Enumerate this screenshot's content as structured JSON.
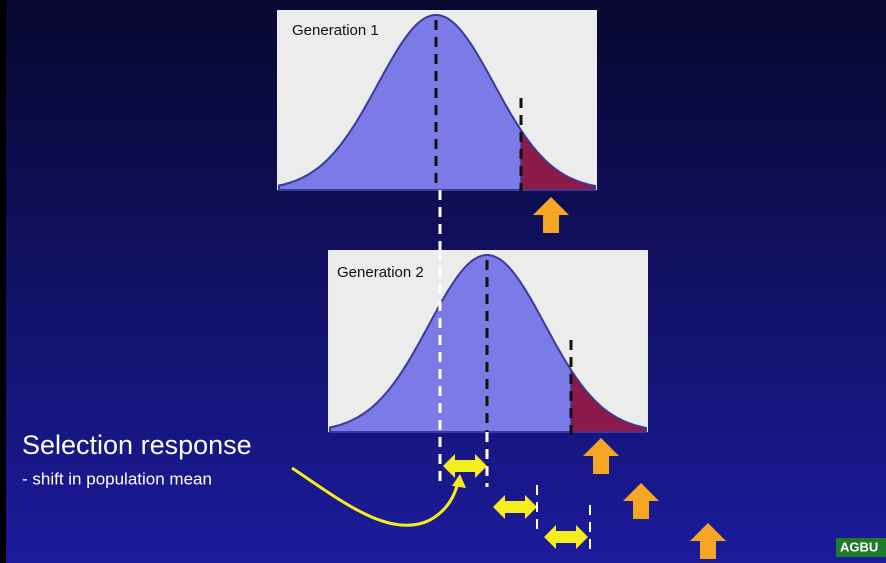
{
  "panels": [
    {
      "label": "Generation 1"
    },
    {
      "label": "Generation 2"
    }
  ],
  "caption": {
    "title": "Selection response",
    "subtitle": "- shift in population mean"
  },
  "logo": "AGBU"
}
